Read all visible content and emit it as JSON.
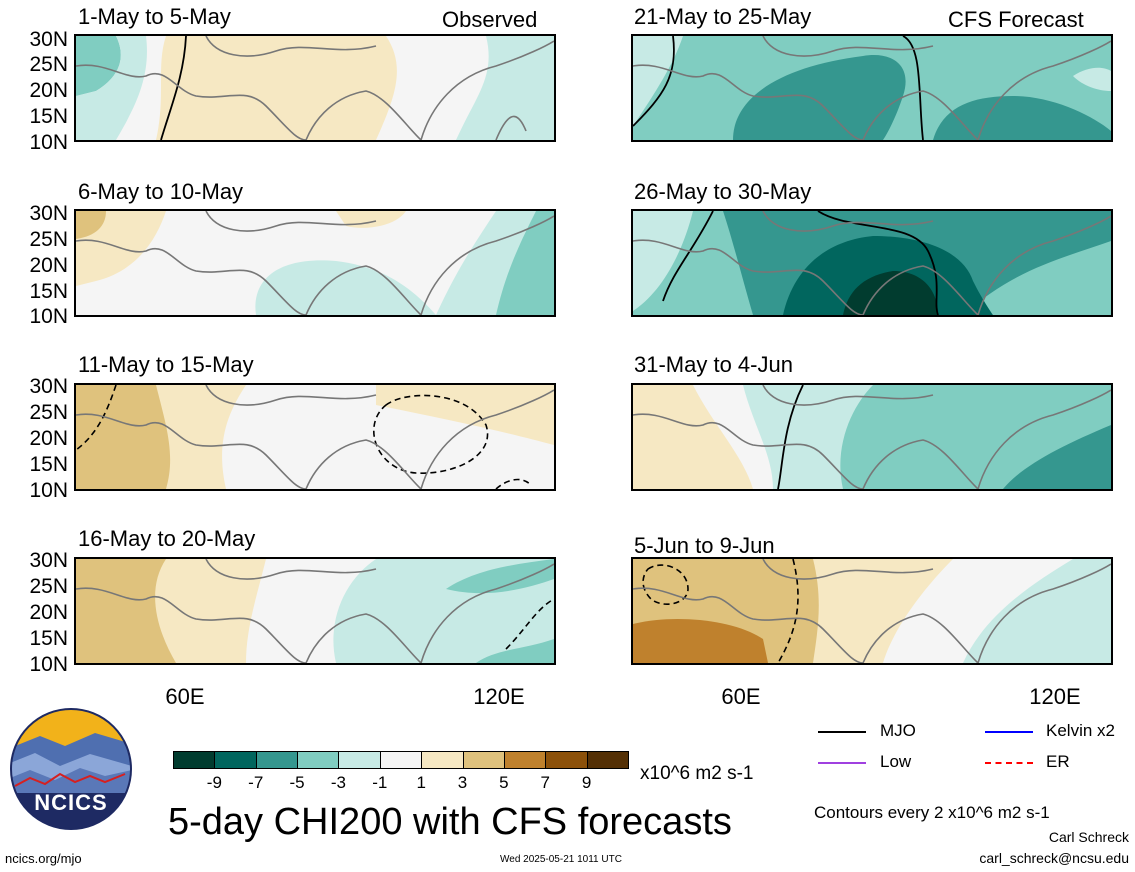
{
  "panels": [
    {
      "title": "1-May to 5-May",
      "tag": "Observed"
    },
    {
      "title": "6-May to 10-May",
      "tag": ""
    },
    {
      "title": "11-May to 15-May",
      "tag": ""
    },
    {
      "title": "16-May to 20-May",
      "tag": ""
    },
    {
      "title": "21-May to 25-May",
      "tag": "CFS Forecast"
    },
    {
      "title": "26-May to 30-May",
      "tag": ""
    },
    {
      "title": "31-May to 4-Jun",
      "tag": ""
    },
    {
      "title": "5-Jun to 9-Jun",
      "tag": ""
    }
  ],
  "lat_labels": [
    "30N",
    "25N",
    "20N",
    "15N",
    "10N"
  ],
  "lon_labels": [
    "60E",
    "120E"
  ],
  "colorbar": {
    "colors": [
      "#013c2f",
      "#01665e",
      "#35978f",
      "#80cdc1",
      "#c7eae5",
      "#f5f5f5",
      "#f6e8c3",
      "#dfc27d",
      "#bf812d",
      "#8c510a",
      "#543005"
    ],
    "labels": [
      "-9",
      "-7",
      "-5",
      "-3",
      "-1",
      "1",
      "3",
      "5",
      "7",
      "9"
    ],
    "units": "x10^6 m2 s-1"
  },
  "legend": [
    {
      "label": "MJO",
      "color": "#000000",
      "style": "solid"
    },
    {
      "label": "Kelvin x2",
      "color": "#0000ff",
      "style": "solid"
    },
    {
      "label": "Low",
      "color": "#a040e0",
      "style": "solid"
    },
    {
      "label": "ER",
      "color": "#ff0000",
      "style": "dashed"
    }
  ],
  "footer": {
    "title": "5-day CHI200 with CFS forecasts",
    "contours": "Contours every 2 x10^6 m2 s-1",
    "author": "Carl Schreck",
    "email": "carl_schreck@ncsu.edu",
    "url": "ncics.org/mjo",
    "timestamp": "Wed 2025-05-21 1011 UTC",
    "logo_text": "NCICS"
  }
}
